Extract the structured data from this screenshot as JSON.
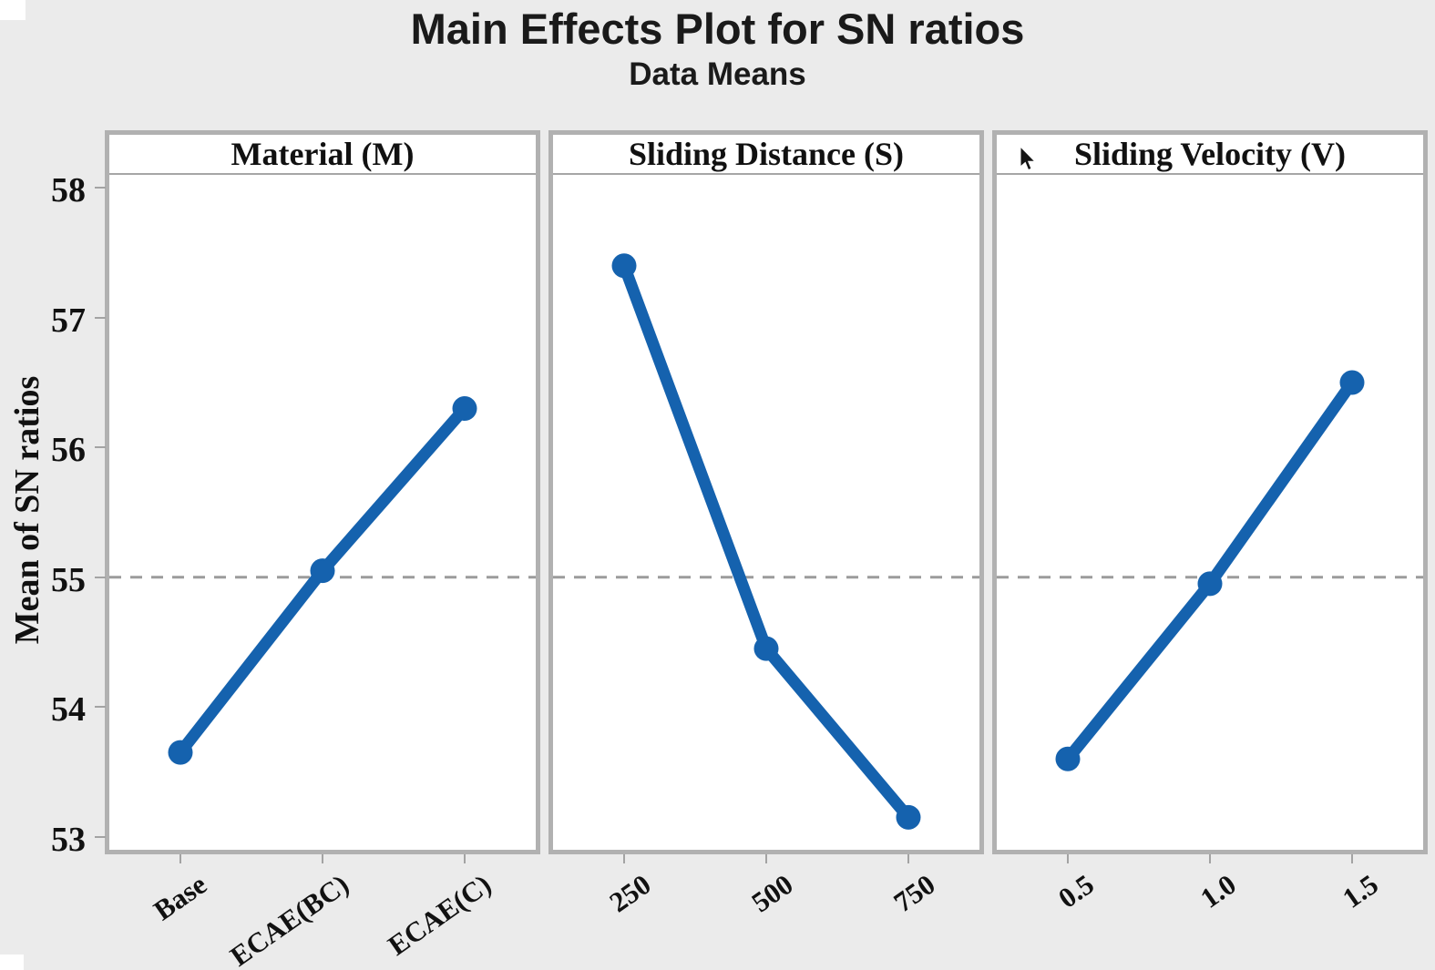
{
  "header": {
    "title": "Main Effects Plot for SN ratios",
    "subtitle": "Data Means"
  },
  "chart_data": {
    "type": "line",
    "title": "Main Effects Plot for SN ratios",
    "subtitle": "Data Means",
    "ylabel": "Mean of SN ratios",
    "ylim": [
      52.9,
      58.1
    ],
    "yticks": [
      58,
      57,
      56,
      55,
      54,
      53
    ],
    "reference_line_value": 55.0,
    "legend": "none",
    "grid": "reference-line-only",
    "marker": "circle",
    "panels": [
      {
        "title": "Material (M)",
        "categories": [
          "Base",
          "ECAE(BC)",
          "ECAE(C)"
        ],
        "values": [
          53.65,
          55.05,
          56.3
        ]
      },
      {
        "title": "Sliding Distance (S)",
        "categories": [
          "250",
          "500",
          "750"
        ],
        "values": [
          57.4,
          54.45,
          53.15
        ]
      },
      {
        "title": "Sliding Velocity (V)",
        "categories": [
          "0.5",
          "1.0",
          "1.5"
        ],
        "values": [
          53.6,
          54.95,
          56.5
        ]
      }
    ],
    "colors": {
      "line": "#1562ae",
      "reference_line": "#9c9c9c",
      "panel_border": "#b1b1b1",
      "tick": "#a3a3a3",
      "panel_bg": "#ffffff",
      "page_bg": "#ebebeb",
      "text": "#111111"
    }
  }
}
